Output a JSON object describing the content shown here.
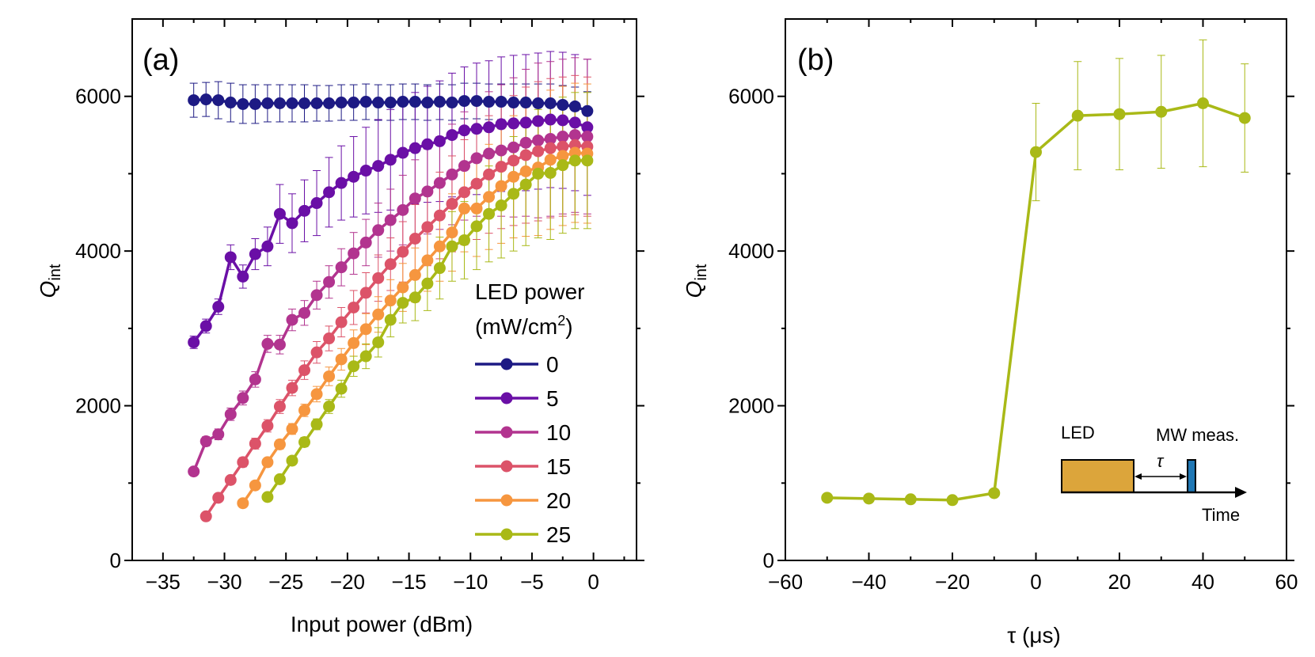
{
  "chart_data": [
    {
      "panel": "(a)",
      "type": "line",
      "xlabel": "Input power (dBm)",
      "ylabel": "Q",
      "ylabel_sub": "int",
      "xlim": [
        -37.5,
        3.5
      ],
      "ylim": [
        0,
        7000
      ],
      "xticks": [
        -35,
        -30,
        -25,
        -20,
        -15,
        -10,
        -5,
        0
      ],
      "xticks_minor": [
        -37.5,
        -32.5,
        -27.5,
        -22.5,
        -17.5,
        -12.5,
        -7.5,
        -2.5,
        2.5
      ],
      "yticks": [
        0,
        2000,
        4000,
        6000
      ],
      "yticks_minor": [
        1000,
        3000,
        5000
      ],
      "tick_labels_x": [
        "−35",
        "−30",
        "−25",
        "−20",
        "−15",
        "−10",
        "−5",
        "0"
      ],
      "tick_labels_y": [
        "0",
        "2000",
        "4000",
        "6000"
      ],
      "legend": {
        "title_line1": "LED power",
        "title_line2_pre": "(mW/cm",
        "title_line2_sup": "2",
        "title_line2_post": ")",
        "placement": "right"
      },
      "series": [
        {
          "name": "0",
          "color": "#1d1a84",
          "x": [
            -32.5,
            -31.5,
            -30.5,
            -29.5,
            -28.5,
            -27.5,
            -26.5,
            -25.5,
            -24.5,
            -23.5,
            -22.5,
            -21.5,
            -20.5,
            -19.5,
            -18.5,
            -17.5,
            -16.5,
            -15.5,
            -14.5,
            -13.5,
            -12.5,
            -11.5,
            -10.5,
            -9.5,
            -8.5,
            -7.5,
            -6.5,
            -5.5,
            -4.5,
            -3.5,
            -2.5,
            -1.5,
            -0.5
          ],
          "values": [
            5950,
            5960,
            5950,
            5920,
            5900,
            5900,
            5910,
            5910,
            5910,
            5910,
            5910,
            5910,
            5920,
            5920,
            5930,
            5920,
            5920,
            5930,
            5930,
            5920,
            5930,
            5920,
            5940,
            5940,
            5930,
            5930,
            5920,
            5920,
            5910,
            5910,
            5890,
            5870,
            5810
          ],
          "err": [
            220,
            220,
            240,
            250,
            250,
            250,
            240,
            240,
            240,
            240,
            230,
            230,
            230,
            230,
            230,
            230,
            230,
            230,
            230,
            230,
            230,
            230,
            230,
            230,
            230,
            230,
            240,
            240,
            250,
            250,
            250,
            250,
            250
          ]
        },
        {
          "name": "5",
          "color": "#6a0fa6",
          "x": [
            -32.5,
            -31.5,
            -30.5,
            -29.5,
            -28.5,
            -27.5,
            -26.5,
            -25.5,
            -24.5,
            -23.5,
            -22.5,
            -21.5,
            -20.5,
            -19.5,
            -18.5,
            -17.5,
            -16.5,
            -15.5,
            -14.5,
            -13.5,
            -12.5,
            -11.5,
            -10.5,
            -9.5,
            -8.5,
            -7.5,
            -6.5,
            -5.5,
            -4.5,
            -3.5,
            -2.5,
            -1.5,
            -0.5
          ],
          "values": [
            2820,
            3030,
            3280,
            3920,
            3670,
            3960,
            4060,
            4480,
            4360,
            4520,
            4620,
            4760,
            4880,
            4960,
            5040,
            5100,
            5180,
            5270,
            5330,
            5380,
            5420,
            5500,
            5560,
            5580,
            5600,
            5640,
            5650,
            5660,
            5680,
            5700,
            5690,
            5660,
            5600
          ],
          "err": [
            80,
            90,
            100,
            160,
            150,
            200,
            250,
            380,
            380,
            400,
            420,
            450,
            480,
            520,
            560,
            600,
            650,
            700,
            720,
            750,
            780,
            800,
            820,
            850,
            860,
            870,
            880,
            880,
            880,
            880,
            880,
            880,
            880
          ]
        },
        {
          "name": "10",
          "color": "#b2348f",
          "x": [
            -32.5,
            -31.5,
            -30.5,
            -29.5,
            -28.5,
            -27.5,
            -26.5,
            -25.5,
            -24.5,
            -23.5,
            -22.5,
            -21.5,
            -20.5,
            -19.5,
            -18.5,
            -17.5,
            -16.5,
            -15.5,
            -14.5,
            -13.5,
            -12.5,
            -11.5,
            -10.5,
            -9.5,
            -8.5,
            -7.5,
            -6.5,
            -5.5,
            -4.5,
            -3.5,
            -2.5,
            -1.5,
            -0.5
          ],
          "values": [
            1150,
            1540,
            1630,
            1890,
            2100,
            2340,
            2800,
            2790,
            3110,
            3200,
            3430,
            3600,
            3790,
            3970,
            4110,
            4270,
            4400,
            4530,
            4680,
            4770,
            4880,
            4990,
            5100,
            5200,
            5260,
            5300,
            5340,
            5400,
            5430,
            5450,
            5480,
            5500,
            5480
          ],
          "err": [
            50,
            60,
            70,
            80,
            90,
            100,
            110,
            120,
            140,
            160,
            180,
            210,
            240,
            270,
            300,
            350,
            400,
            450,
            500,
            550,
            600,
            650,
            700,
            750,
            800,
            850,
            900,
            950,
            1000,
            1000,
            1000,
            1000,
            1000
          ]
        },
        {
          "name": "15",
          "color": "#dc5369",
          "x": [
            -31.5,
            -30.5,
            -29.5,
            -28.5,
            -27.5,
            -26.5,
            -25.5,
            -24.5,
            -23.5,
            -22.5,
            -21.5,
            -20.5,
            -19.5,
            -18.5,
            -17.5,
            -16.5,
            -15.5,
            -14.5,
            -13.5,
            -12.5,
            -11.5,
            -10.5,
            -9.5,
            -8.5,
            -7.5,
            -6.5,
            -5.5,
            -4.5,
            -3.5,
            -2.5,
            -1.5,
            -0.5
          ],
          "values": [
            570,
            810,
            1040,
            1270,
            1510,
            1740,
            1990,
            2230,
            2460,
            2690,
            2870,
            3080,
            3270,
            3460,
            3650,
            3830,
            3990,
            4160,
            4310,
            4460,
            4610,
            4760,
            4870,
            4990,
            5090,
            5170,
            5240,
            5290,
            5330,
            5350,
            5370,
            5350
          ],
          "err": [
            30,
            40,
            50,
            60,
            70,
            80,
            90,
            100,
            120,
            140,
            160,
            190,
            220,
            260,
            300,
            340,
            390,
            440,
            500,
            560,
            620,
            680,
            720,
            760,
            800,
            840,
            880,
            900,
            900,
            900,
            900,
            900
          ]
        },
        {
          "name": "20",
          "color": "#f6963f",
          "x": [
            -28.5,
            -27.5,
            -26.5,
            -25.5,
            -24.5,
            -23.5,
            -22.5,
            -21.5,
            -20.5,
            -19.5,
            -18.5,
            -17.5,
            -16.5,
            -15.5,
            -14.5,
            -13.5,
            -12.5,
            -11.5,
            -10.5,
            -9.5,
            -8.5,
            -7.5,
            -6.5,
            -5.5,
            -4.5,
            -3.5,
            -2.5,
            -1.5,
            -0.5
          ],
          "values": [
            740,
            970,
            1270,
            1500,
            1700,
            1940,
            2150,
            2380,
            2600,
            2810,
            2990,
            3180,
            3360,
            3530,
            3690,
            3880,
            4060,
            4240,
            4550,
            4550,
            4700,
            4840,
            4960,
            5030,
            5080,
            5180,
            5230,
            5270,
            5260
          ],
          "err": [
            30,
            40,
            50,
            60,
            70,
            80,
            100,
            120,
            140,
            170,
            200,
            230,
            270,
            310,
            350,
            400,
            450,
            500,
            560,
            620,
            680,
            740,
            790,
            840,
            880,
            900,
            900,
            900,
            900
          ]
        },
        {
          "name": "25",
          "color": "#a9b917",
          "x": [
            -26.5,
            -25.5,
            -24.5,
            -23.5,
            -22.5,
            -21.5,
            -20.5,
            -19.5,
            -18.5,
            -17.5,
            -16.5,
            -15.5,
            -14.5,
            -13.5,
            -12.5,
            -11.5,
            -10.5,
            -9.5,
            -8.5,
            -7.5,
            -6.5,
            -5.5,
            -4.5,
            -3.5,
            -2.5,
            -1.5,
            -0.5
          ],
          "values": [
            820,
            1050,
            1290,
            1530,
            1760,
            1990,
            2220,
            2510,
            2640,
            2820,
            3110,
            3330,
            3400,
            3580,
            3780,
            4060,
            4140,
            4320,
            4480,
            4590,
            4740,
            4860,
            5000,
            5010,
            5110,
            5170,
            5170
          ],
          "err": [
            30,
            40,
            50,
            60,
            70,
            90,
            110,
            130,
            160,
            190,
            220,
            260,
            300,
            350,
            400,
            450,
            500,
            560,
            620,
            680,
            740,
            790,
            830,
            860,
            880,
            880,
            880
          ]
        }
      ],
      "legend_order": [
        "0",
        "5",
        "10",
        "15",
        "20",
        "25"
      ]
    },
    {
      "panel": "(b)",
      "type": "line",
      "xlabel": "τ (μs)",
      "ylabel": "Q",
      "ylabel_sub": "int",
      "xlim": [
        -60,
        60
      ],
      "ylim": [
        0,
        7000
      ],
      "xticks": [
        -60,
        -40,
        -20,
        0,
        20,
        40,
        60
      ],
      "xticks_minor": [
        -50,
        -30,
        -10,
        10,
        30,
        50
      ],
      "yticks": [
        0,
        2000,
        4000,
        6000
      ],
      "yticks_minor": [
        1000,
        3000,
        5000
      ],
      "tick_labels_x": [
        "−60",
        "−40",
        "−20",
        "0",
        "20",
        "40",
        "60"
      ],
      "tick_labels_y": [
        "0",
        "2000",
        "4000",
        "6000"
      ],
      "series": [
        {
          "name": "25",
          "color": "#a9b917",
          "x": [
            -50,
            -40,
            -30,
            -20,
            -10,
            0,
            10,
            20,
            30,
            40,
            50
          ],
          "values": [
            810,
            800,
            790,
            780,
            870,
            5280,
            5750,
            5770,
            5800,
            5910,
            5720
          ],
          "err": [
            0,
            0,
            0,
            0,
            0,
            630,
            700,
            720,
            730,
            820,
            700
          ]
        }
      ],
      "inset": {
        "led_label": "LED",
        "mw_label": "MW meas.",
        "tau_label": "τ",
        "time_label": "Time",
        "led_color": "#dca53b",
        "mw_color": "#1f77b4"
      }
    }
  ]
}
